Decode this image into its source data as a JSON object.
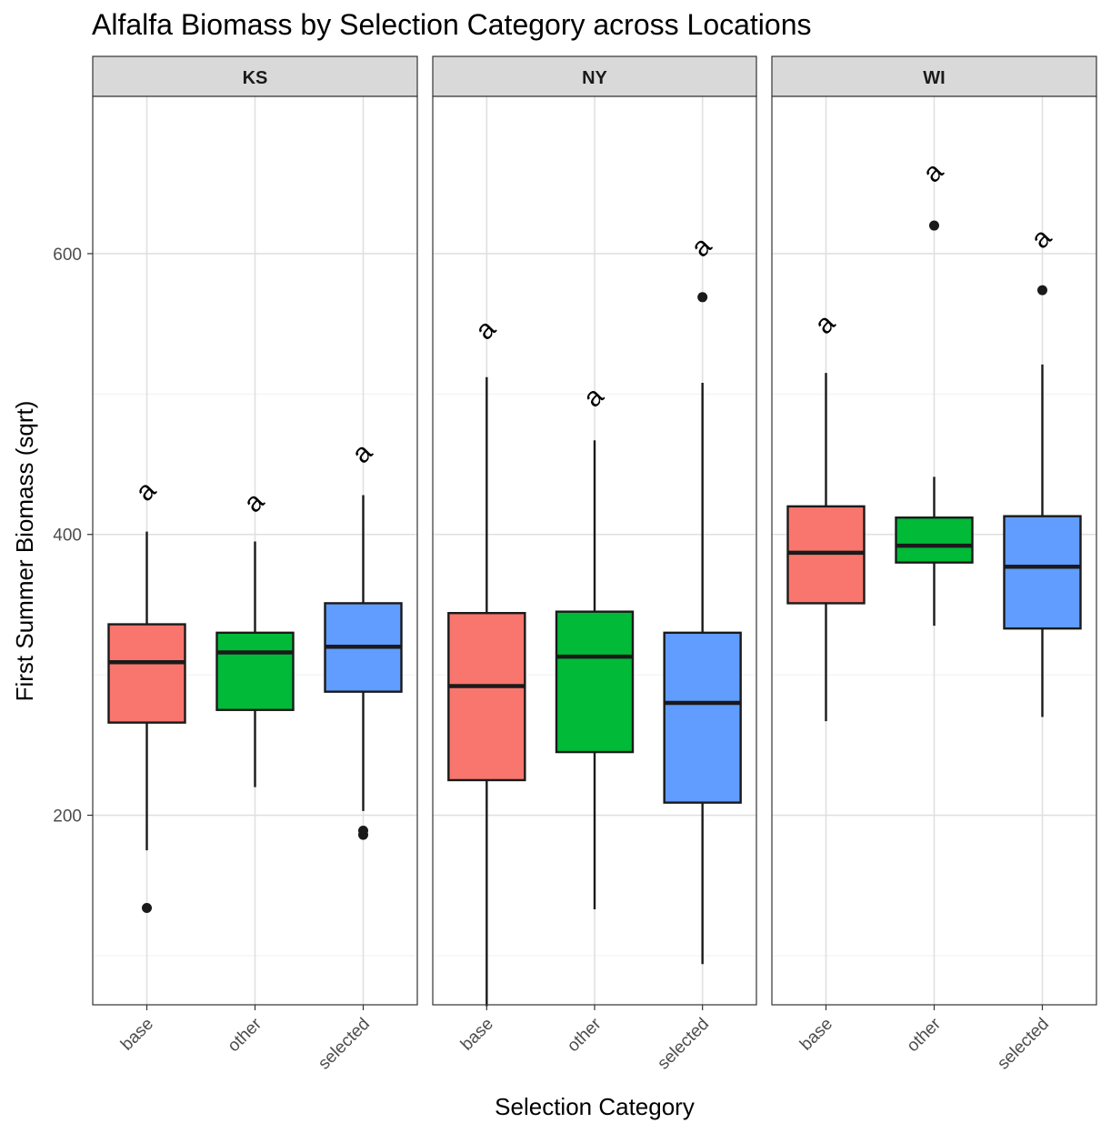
{
  "chart_data": {
    "type": "boxplot",
    "title": "Alfalfa Biomass by Selection Category across Locations",
    "xlabel": "Selection Category",
    "ylabel": "First Summer Biomass (sqrt)",
    "ylim": [
      65,
      712
    ],
    "y_ticks": [
      200,
      400,
      600
    ],
    "y_minor_ticks": [
      100,
      300,
      500
    ],
    "grid": true,
    "legend": "none",
    "categories": [
      "base",
      "other",
      "selected"
    ],
    "colors": {
      "base": "#F8766D",
      "other": "#00BA38",
      "selected": "#619CFF"
    },
    "facets": [
      {
        "label": "KS",
        "boxes": [
          {
            "category": "base",
            "whisker_low": 175,
            "q1": 266,
            "median": 309,
            "q3": 336,
            "whisker_high": 402,
            "outliers": [
              134
            ],
            "letter": "a",
            "letter_y": 430
          },
          {
            "category": "other",
            "whisker_low": 220,
            "q1": 275,
            "median": 316,
            "q3": 330,
            "whisker_high": 395,
            "outliers": [],
            "letter": "a",
            "letter_y": 422
          },
          {
            "category": "selected",
            "whisker_low": 203,
            "q1": 288,
            "median": 320,
            "q3": 351,
            "whisker_high": 428,
            "outliers": [
              189,
              186
            ],
            "letter": "a",
            "letter_y": 457
          }
        ]
      },
      {
        "label": "NY",
        "boxes": [
          {
            "category": "base",
            "whisker_low": 64,
            "q1": 225,
            "median": 292,
            "q3": 344,
            "whisker_high": 512,
            "outliers": [],
            "letter": "a",
            "letter_y": 545
          },
          {
            "category": "other",
            "whisker_low": 133,
            "q1": 245,
            "median": 313,
            "q3": 345,
            "whisker_high": 467,
            "outliers": [],
            "letter": "a",
            "letter_y": 497
          },
          {
            "category": "selected",
            "whisker_low": 94,
            "q1": 209,
            "median": 280,
            "q3": 330,
            "whisker_high": 508,
            "outliers": [
              569
            ],
            "letter": "a",
            "letter_y": 604
          }
        ]
      },
      {
        "label": "WI",
        "boxes": [
          {
            "category": "base",
            "whisker_low": 267,
            "q1": 351,
            "median": 387,
            "q3": 420,
            "whisker_high": 515,
            "outliers": [],
            "letter": "a",
            "letter_y": 549
          },
          {
            "category": "other",
            "whisker_low": 335,
            "q1": 380,
            "median": 392,
            "q3": 412,
            "whisker_high": 441,
            "outliers": [
              620
            ],
            "letter": "a",
            "letter_y": 657
          },
          {
            "category": "selected",
            "whisker_low": 270,
            "q1": 333,
            "median": 377,
            "q3": 413,
            "whisker_high": 521,
            "outliers": [
              574
            ],
            "letter": "a",
            "letter_y": 610
          }
        ]
      }
    ]
  }
}
